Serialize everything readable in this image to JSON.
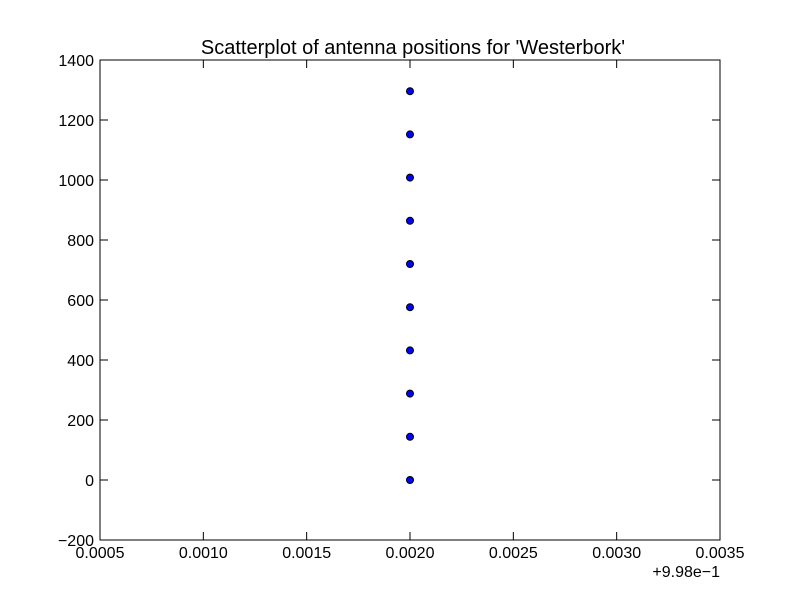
{
  "chart_data": {
    "type": "scatter",
    "title": "Scatterplot of antenna positions for 'Westerbork'",
    "xlabel": "",
    "ylabel": "",
    "xlim": [
      0.0005,
      0.0035
    ],
    "ylim": [
      -200,
      1400
    ],
    "x_offset_label": "+9.98e−1",
    "x_ticks": [
      0.0005,
      0.001,
      0.0015,
      0.002,
      0.0025,
      0.003,
      0.0035
    ],
    "x_tick_labels": [
      "0.0005",
      "0.0010",
      "0.0015",
      "0.0020",
      "0.0025",
      "0.0030",
      "0.0035"
    ],
    "y_ticks": [
      -200,
      0,
      200,
      400,
      600,
      800,
      1000,
      1200,
      1400
    ],
    "y_tick_labels": [
      "−200",
      "0",
      "200",
      "400",
      "600",
      "800",
      "1000",
      "1200",
      "1400"
    ],
    "grid": false,
    "marker_color": "#0000ff",
    "marker_edge_color": "#000000",
    "series": [
      {
        "x": [
          0.002,
          0.002,
          0.002,
          0.002,
          0.002,
          0.002,
          0.002,
          0.002,
          0.002,
          0.002
        ],
        "y": [
          0,
          144,
          288,
          432,
          576,
          720,
          864,
          1008,
          1152,
          1296
        ]
      }
    ]
  }
}
